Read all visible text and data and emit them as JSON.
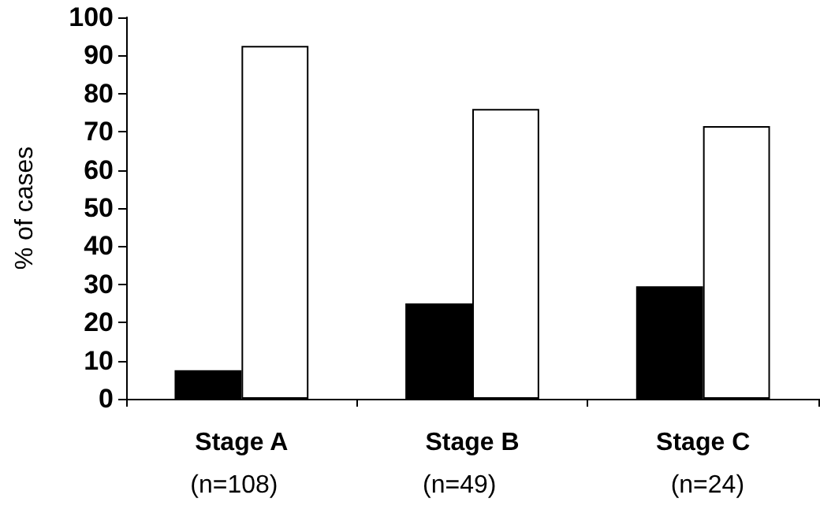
{
  "chart_data": {
    "type": "bar",
    "ylabel": "% of cases",
    "categories": [
      "Stage A",
      "Stage B",
      "Stage C"
    ],
    "series": [
      {
        "color": "#000000",
        "values": [
          7.5,
          25,
          29.5
        ]
      },
      {
        "color": "#ffffff",
        "values": [
          92.5,
          76,
          71.5
        ]
      }
    ],
    "ylim": [
      0,
      100
    ],
    "yticks": [
      0,
      10,
      20,
      30,
      40,
      50,
      60,
      70,
      80,
      90,
      100
    ],
    "annotations": [
      "(n=108)",
      "(n=49)",
      "(n=24)"
    ],
    "grid": false
  }
}
